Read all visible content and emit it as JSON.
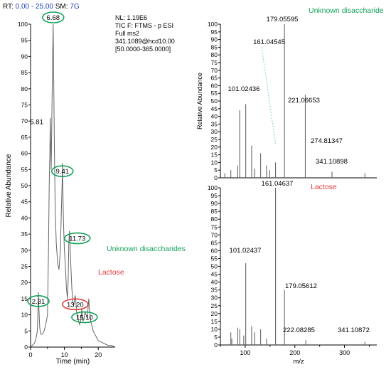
{
  "header": {
    "rt_label": "RT:",
    "rt_range": "0.00 - 25.00",
    "sm_label": "SM:",
    "sm_value": "7G"
  },
  "info_block": {
    "nl": "NL: 1.19E6",
    "tic": "TIC F: FTMS - p ESI",
    "scan": "Full ms2",
    "precursor": "341.1089@hcd10.00",
    "mass_range": "[50.0000-365.0000]"
  },
  "colors": {
    "annotation_green": "#13a35a",
    "annotation_red": "#e03a3a",
    "header_blue": "#1f3fbf",
    "trace": "#666666"
  },
  "chart_data": [
    {
      "type": "line",
      "xlabel": "Time (min)",
      "ylabel": "Relative Abundance",
      "xlim": [
        0,
        25
      ],
      "ylim": [
        0,
        100
      ],
      "xticks": [
        "0",
        "10",
        "20"
      ],
      "xtick_values": [
        0,
        10,
        20
      ],
      "minor_xtick_values": [
        5,
        15
      ],
      "yticks": [
        "0",
        "5",
        "10",
        "15",
        "20",
        "25",
        "30",
        "35",
        "40",
        "45",
        "50",
        "55",
        "60",
        "65",
        "70",
        "75",
        "80",
        "85",
        "90",
        "95",
        "100"
      ],
      "ytick_values": [
        0,
        5,
        10,
        15,
        20,
        25,
        30,
        35,
        40,
        45,
        50,
        55,
        60,
        65,
        70,
        75,
        80,
        85,
        90,
        95,
        100
      ],
      "series": [
        {
          "x": [
            0,
            0.5,
            1,
            1.5,
            2.0,
            2.2,
            2.31,
            2.45,
            2.7,
            3,
            3.5,
            4,
            4.5,
            5,
            5.3,
            5.5,
            5.7,
            5.81,
            5.95,
            6.1,
            6.3,
            6.5,
            6.68,
            6.85,
            7.05,
            7.3,
            7.6,
            8,
            8.4,
            8.8,
            9.1,
            9.3,
            9.41,
            9.55,
            9.75,
            10,
            10.3,
            10.6,
            10.9,
            11.1,
            11.3,
            11.5,
            11.73,
            11.95,
            12.2,
            12.5,
            12.8,
            13.0,
            13.2,
            13.4,
            13.6,
            13.9,
            14.2,
            14.5,
            14.8,
            15.0,
            15.1,
            15.25,
            15.5,
            15.8,
            16.1,
            16.4,
            16.7,
            17.0,
            17.2,
            17.4,
            17.6,
            17.8,
            18,
            18.5,
            19,
            19.5,
            20,
            21,
            22,
            23,
            24,
            25
          ],
          "y": [
            0,
            0.5,
            1,
            2,
            5,
            12,
            17,
            12,
            6,
            4,
            4,
            5,
            7,
            10,
            30,
            50,
            60,
            71,
            62,
            55,
            72,
            88,
            100,
            82,
            60,
            42,
            32,
            26,
            24,
            30,
            42,
            50,
            57,
            48,
            38,
            30,
            25,
            18,
            15,
            20,
            32,
            36,
            30,
            24,
            18,
            14,
            13,
            15,
            16,
            14,
            11,
            9,
            8,
            7,
            8,
            10,
            12,
            10,
            8,
            9,
            11,
            10,
            9,
            12,
            15,
            12,
            10,
            8,
            7,
            5,
            4,
            3,
            2,
            1.5,
            1,
            0.5,
            0.5,
            0
          ]
        }
      ],
      "peak_labels": [
        {
          "text": "6.68",
          "x": 6.68,
          "y": 100,
          "circle": "green"
        },
        {
          "text": "5.81",
          "x": 5.81,
          "y": 71,
          "circle": "none"
        },
        {
          "text": "9.41",
          "x": 9.41,
          "y": 57,
          "circle": "green"
        },
        {
          "text": "11.73",
          "x": 11.73,
          "y": 36,
          "circle": "green"
        },
        {
          "text": "13.20",
          "x": 13.2,
          "y": 16,
          "circle": "red"
        },
        {
          "text": "2.31",
          "x": 2.31,
          "y": 17,
          "circle": "green"
        },
        {
          "text": "15.10",
          "x": 15.1,
          "y": 12,
          "circle": "green"
        }
      ],
      "annotations": [
        {
          "text": "Unknown disaccharides",
          "color": "green"
        },
        {
          "text": "Lactose",
          "color": "red"
        }
      ]
    },
    {
      "type": "bar",
      "title": "Unknown disaccharide",
      "ylabel": "Relative Abundance",
      "xlim": [
        50,
        365
      ],
      "ylim": [
        0,
        100
      ],
      "yticks": [
        "0",
        "5",
        "10",
        "15",
        "20",
        "25",
        "30",
        "35",
        "40",
        "45",
        "50",
        "55",
        "60",
        "65",
        "70",
        "75",
        "80",
        "85",
        "90",
        "95",
        "100"
      ],
      "ytick_values": [
        0,
        5,
        10,
        15,
        20,
        25,
        30,
        35,
        40,
        45,
        50,
        55,
        60,
        65,
        70,
        75,
        80,
        85,
        90,
        95,
        100
      ],
      "x": [
        59.01,
        71.01,
        85.03,
        89.02,
        101.02436,
        113.02,
        119.03,
        131.03,
        143.03,
        149.04,
        161.04545,
        179.05595,
        221.06653,
        274.81347,
        341.10898
      ],
      "y": [
        3,
        5,
        8,
        44,
        48,
        21,
        6,
        16,
        8,
        5,
        10,
        100,
        54,
        4,
        3
      ],
      "peak_labels": [
        {
          "text": "179.05595",
          "x": 179.05595
        },
        {
          "text": "161.04545",
          "x": 161.04545
        },
        {
          "text": "101.02436",
          "x": 101.02436
        },
        {
          "text": "221.06653",
          "x": 221.06653
        },
        {
          "text": "274.81347",
          "x": 274.81347
        },
        {
          "text": "341.10898",
          "x": 341.10898
        }
      ]
    },
    {
      "type": "bar",
      "title": "Lactose",
      "xlabel": "m/z",
      "xlim": [
        50,
        365
      ],
      "ylim": [
        0,
        100
      ],
      "xticks": [
        "100",
        "200",
        "300"
      ],
      "xtick_values": [
        100,
        200,
        300
      ],
      "minor_xtick_values": [
        50,
        150,
        250,
        350
      ],
      "yticks": [
        "0",
        "5",
        "10",
        "15",
        "20",
        "25",
        "30",
        "35",
        "40",
        "45",
        "50",
        "55",
        "60",
        "65",
        "70",
        "75",
        "80",
        "85",
        "90",
        "95",
        "100"
      ],
      "ytick_values": [
        0,
        5,
        10,
        15,
        20,
        25,
        30,
        35,
        40,
        45,
        50,
        55,
        60,
        65,
        70,
        75,
        80,
        85,
        90,
        95,
        100
      ],
      "x": [
        71.01,
        73.03,
        85.03,
        89.02,
        97.03,
        101.02437,
        113.02,
        119.03,
        131.03,
        143.03,
        161.04637,
        179.05612,
        222.08285,
        341.10872
      ],
      "y": [
        8,
        4,
        11,
        10,
        6,
        52,
        12,
        8,
        10,
        4,
        100,
        35,
        3,
        2
      ],
      "peak_labels": [
        {
          "text": "161.04637",
          "x": 161.04637
        },
        {
          "text": "101.02437",
          "x": 101.02437
        },
        {
          "text": "179.05612",
          "x": 179.05612
        },
        {
          "text": "222.08285",
          "x": 222.08285
        },
        {
          "text": "341.10872",
          "x": 341.10872
        }
      ]
    }
  ]
}
